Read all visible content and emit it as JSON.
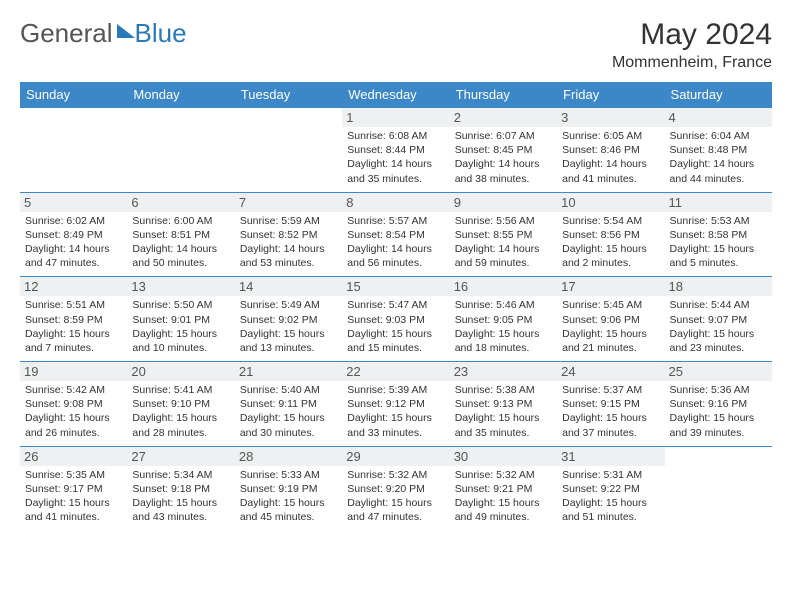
{
  "logo": {
    "general": "General",
    "blue": "Blue"
  },
  "title": "May 2024",
  "location": "Mommenheim, France",
  "columns": [
    "Sunday",
    "Monday",
    "Tuesday",
    "Wednesday",
    "Thursday",
    "Friday",
    "Saturday"
  ],
  "header_bg": "#3b87c8",
  "row_border": "#3b87c8",
  "daynum_bg": "#eef0f1",
  "weeks": [
    [
      null,
      null,
      null,
      {
        "n": "1",
        "sr": "6:08 AM",
        "ss": "8:44 PM",
        "dl": "14 hours and 35 minutes."
      },
      {
        "n": "2",
        "sr": "6:07 AM",
        "ss": "8:45 PM",
        "dl": "14 hours and 38 minutes."
      },
      {
        "n": "3",
        "sr": "6:05 AM",
        "ss": "8:46 PM",
        "dl": "14 hours and 41 minutes."
      },
      {
        "n": "4",
        "sr": "6:04 AM",
        "ss": "8:48 PM",
        "dl": "14 hours and 44 minutes."
      }
    ],
    [
      {
        "n": "5",
        "sr": "6:02 AM",
        "ss": "8:49 PM",
        "dl": "14 hours and 47 minutes."
      },
      {
        "n": "6",
        "sr": "6:00 AM",
        "ss": "8:51 PM",
        "dl": "14 hours and 50 minutes."
      },
      {
        "n": "7",
        "sr": "5:59 AM",
        "ss": "8:52 PM",
        "dl": "14 hours and 53 minutes."
      },
      {
        "n": "8",
        "sr": "5:57 AM",
        "ss": "8:54 PM",
        "dl": "14 hours and 56 minutes."
      },
      {
        "n": "9",
        "sr": "5:56 AM",
        "ss": "8:55 PM",
        "dl": "14 hours and 59 minutes."
      },
      {
        "n": "10",
        "sr": "5:54 AM",
        "ss": "8:56 PM",
        "dl": "15 hours and 2 minutes."
      },
      {
        "n": "11",
        "sr": "5:53 AM",
        "ss": "8:58 PM",
        "dl": "15 hours and 5 minutes."
      }
    ],
    [
      {
        "n": "12",
        "sr": "5:51 AM",
        "ss": "8:59 PM",
        "dl": "15 hours and 7 minutes."
      },
      {
        "n": "13",
        "sr": "5:50 AM",
        "ss": "9:01 PM",
        "dl": "15 hours and 10 minutes."
      },
      {
        "n": "14",
        "sr": "5:49 AM",
        "ss": "9:02 PM",
        "dl": "15 hours and 13 minutes."
      },
      {
        "n": "15",
        "sr": "5:47 AM",
        "ss": "9:03 PM",
        "dl": "15 hours and 15 minutes."
      },
      {
        "n": "16",
        "sr": "5:46 AM",
        "ss": "9:05 PM",
        "dl": "15 hours and 18 minutes."
      },
      {
        "n": "17",
        "sr": "5:45 AM",
        "ss": "9:06 PM",
        "dl": "15 hours and 21 minutes."
      },
      {
        "n": "18",
        "sr": "5:44 AM",
        "ss": "9:07 PM",
        "dl": "15 hours and 23 minutes."
      }
    ],
    [
      {
        "n": "19",
        "sr": "5:42 AM",
        "ss": "9:08 PM",
        "dl": "15 hours and 26 minutes."
      },
      {
        "n": "20",
        "sr": "5:41 AM",
        "ss": "9:10 PM",
        "dl": "15 hours and 28 minutes."
      },
      {
        "n": "21",
        "sr": "5:40 AM",
        "ss": "9:11 PM",
        "dl": "15 hours and 30 minutes."
      },
      {
        "n": "22",
        "sr": "5:39 AM",
        "ss": "9:12 PM",
        "dl": "15 hours and 33 minutes."
      },
      {
        "n": "23",
        "sr": "5:38 AM",
        "ss": "9:13 PM",
        "dl": "15 hours and 35 minutes."
      },
      {
        "n": "24",
        "sr": "5:37 AM",
        "ss": "9:15 PM",
        "dl": "15 hours and 37 minutes."
      },
      {
        "n": "25",
        "sr": "5:36 AM",
        "ss": "9:16 PM",
        "dl": "15 hours and 39 minutes."
      }
    ],
    [
      {
        "n": "26",
        "sr": "5:35 AM",
        "ss": "9:17 PM",
        "dl": "15 hours and 41 minutes."
      },
      {
        "n": "27",
        "sr": "5:34 AM",
        "ss": "9:18 PM",
        "dl": "15 hours and 43 minutes."
      },
      {
        "n": "28",
        "sr": "5:33 AM",
        "ss": "9:19 PM",
        "dl": "15 hours and 45 minutes."
      },
      {
        "n": "29",
        "sr": "5:32 AM",
        "ss": "9:20 PM",
        "dl": "15 hours and 47 minutes."
      },
      {
        "n": "30",
        "sr": "5:32 AM",
        "ss": "9:21 PM",
        "dl": "15 hours and 49 minutes."
      },
      {
        "n": "31",
        "sr": "5:31 AM",
        "ss": "9:22 PM",
        "dl": "15 hours and 51 minutes."
      },
      null
    ]
  ],
  "labels": {
    "sunrise": "Sunrise:",
    "sunset": "Sunset:",
    "daylight": "Daylight:"
  }
}
